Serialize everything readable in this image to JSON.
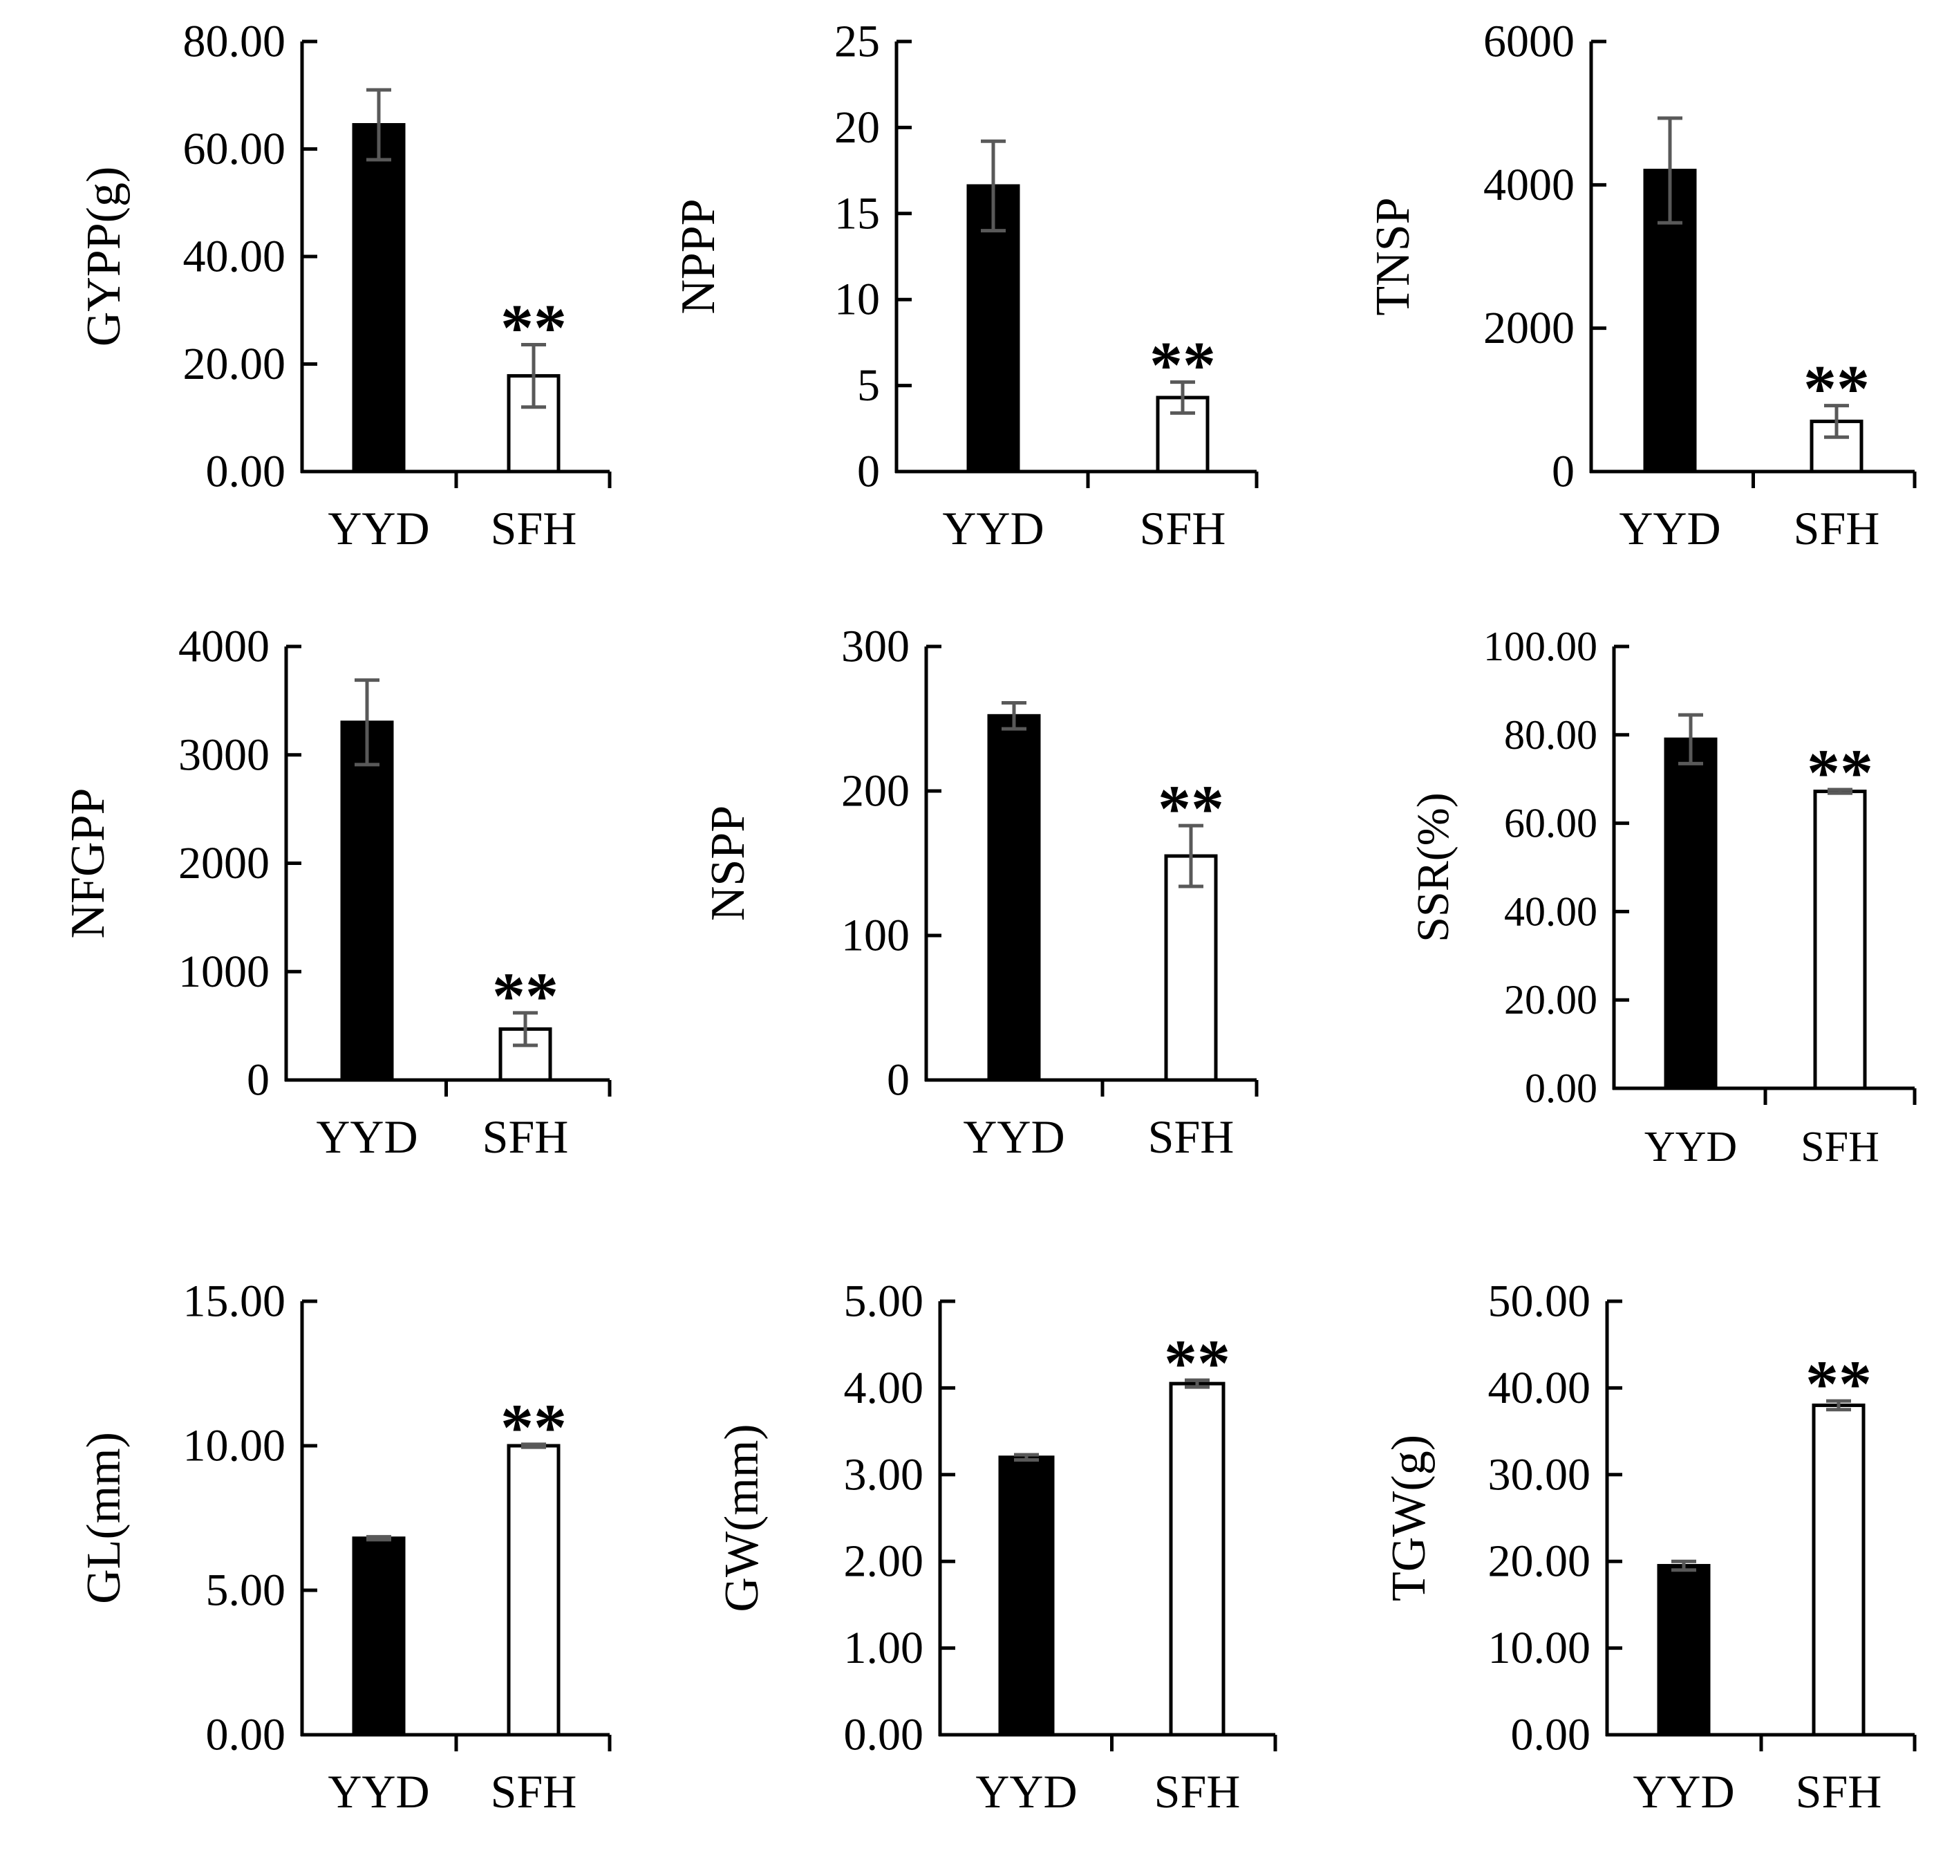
{
  "chart_data": [
    {
      "type": "bar",
      "ylabel": "GYPP(g)",
      "categories": [
        "YYD",
        "SFH"
      ],
      "values": [
        64.5,
        17.8
      ],
      "errors": [
        6.5,
        5.8
      ],
      "ylim": [
        0,
        80
      ],
      "yticks": [
        "0.00",
        "20.00",
        "40.00",
        "60.00",
        "80.00"
      ],
      "annotations": [
        "",
        "**"
      ]
    },
    {
      "type": "bar",
      "ylabel": "NPPP",
      "categories": [
        "YYD",
        "SFH"
      ],
      "values": [
        16.6,
        4.3
      ],
      "errors": [
        2.6,
        0.9
      ],
      "ylim": [
        0,
        25
      ],
      "yticks": [
        "0",
        "5",
        "10",
        "15",
        "20",
        "25"
      ],
      "annotations": [
        "",
        "**"
      ]
    },
    {
      "type": "bar",
      "ylabel": "TNSP",
      "categories": [
        "YYD",
        "SFH"
      ],
      "values": [
        4200,
        700
      ],
      "errors": [
        730,
        220
      ],
      "ylim": [
        0,
        6000
      ],
      "yticks": [
        "0",
        "2000",
        "4000",
        "6000"
      ],
      "annotations": [
        "",
        "**"
      ]
    },
    {
      "type": "bar",
      "ylabel": "NFGPP",
      "categories": [
        "YYD",
        "SFH"
      ],
      "values": [
        3300,
        470
      ],
      "errors": [
        390,
        150
      ],
      "ylim": [
        0,
        4000
      ],
      "yticks": [
        "0",
        "1000",
        "2000",
        "3000",
        "4000"
      ],
      "annotations": [
        "",
        "**"
      ]
    },
    {
      "type": "bar",
      "ylabel": "NSPP",
      "categories": [
        "YYD",
        "SFH"
      ],
      "values": [
        252,
        155
      ],
      "errors": [
        9,
        21
      ],
      "ylim": [
        0,
        300
      ],
      "yticks": [
        "0",
        "100",
        "200",
        "300"
      ],
      "annotations": [
        "",
        "**"
      ]
    },
    {
      "type": "bar",
      "ylabel": "SSR(%)",
      "categories": [
        "YYD",
        "SFH"
      ],
      "values": [
        79,
        67.2
      ],
      "errors": [
        5.5,
        0.4
      ],
      "ylim": [
        0,
        100
      ],
      "yticks": [
        "0.00",
        "20.00",
        "40.00",
        "60.00",
        "80.00",
        "100.00"
      ],
      "annotations": [
        "",
        "**"
      ]
    },
    {
      "type": "bar",
      "ylabel": "GL(mm)",
      "categories": [
        "YYD",
        "SFH"
      ],
      "values": [
        6.8,
        10.0
      ],
      "errors": [
        0.05,
        0.05
      ],
      "ylim": [
        0,
        15
      ],
      "yticks": [
        "0.00",
        "5.00",
        "10.00",
        "15.00"
      ],
      "annotations": [
        "",
        "**"
      ]
    },
    {
      "type": "bar",
      "ylabel": "GW(mm)",
      "categories": [
        "YYD",
        "SFH"
      ],
      "values": [
        3.2,
        4.05
      ],
      "errors": [
        0.03,
        0.04
      ],
      "ylim": [
        0,
        5
      ],
      "yticks": [
        "0.00",
        "1.00",
        "2.00",
        "3.00",
        "4.00",
        "5.00"
      ],
      "annotations": [
        "",
        "**"
      ]
    },
    {
      "type": "bar",
      "ylabel": "TGW(g)",
      "categories": [
        "YYD",
        "SFH"
      ],
      "values": [
        19.5,
        38.0
      ],
      "errors": [
        0.5,
        0.5
      ],
      "ylim": [
        0,
        50
      ],
      "yticks": [
        "0.00",
        "10.00",
        "20.00",
        "30.00",
        "40.00",
        "50.00"
      ],
      "annotations": [
        "",
        "**"
      ]
    }
  ],
  "colors": {
    "bar_fill": [
      "#000000",
      "#ffffff"
    ],
    "bar_stroke": "#000000",
    "axis": "#000000",
    "error_bar": "#595959"
  }
}
